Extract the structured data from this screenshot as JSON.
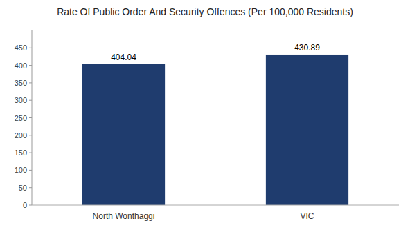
{
  "chart_data": {
    "type": "bar",
    "title": "Rate Of Public Order And Security Offences (Per 100,000 Residents)",
    "categories": [
      "North Wonthaggi",
      "VIC"
    ],
    "values": [
      404.04,
      430.89
    ],
    "color": "#1F3C6E",
    "ylim": [
      0,
      500
    ],
    "yticks": [
      0,
      50,
      100,
      150,
      200,
      250,
      300,
      350,
      400,
      450
    ],
    "grid": false,
    "data_labels": true
  }
}
